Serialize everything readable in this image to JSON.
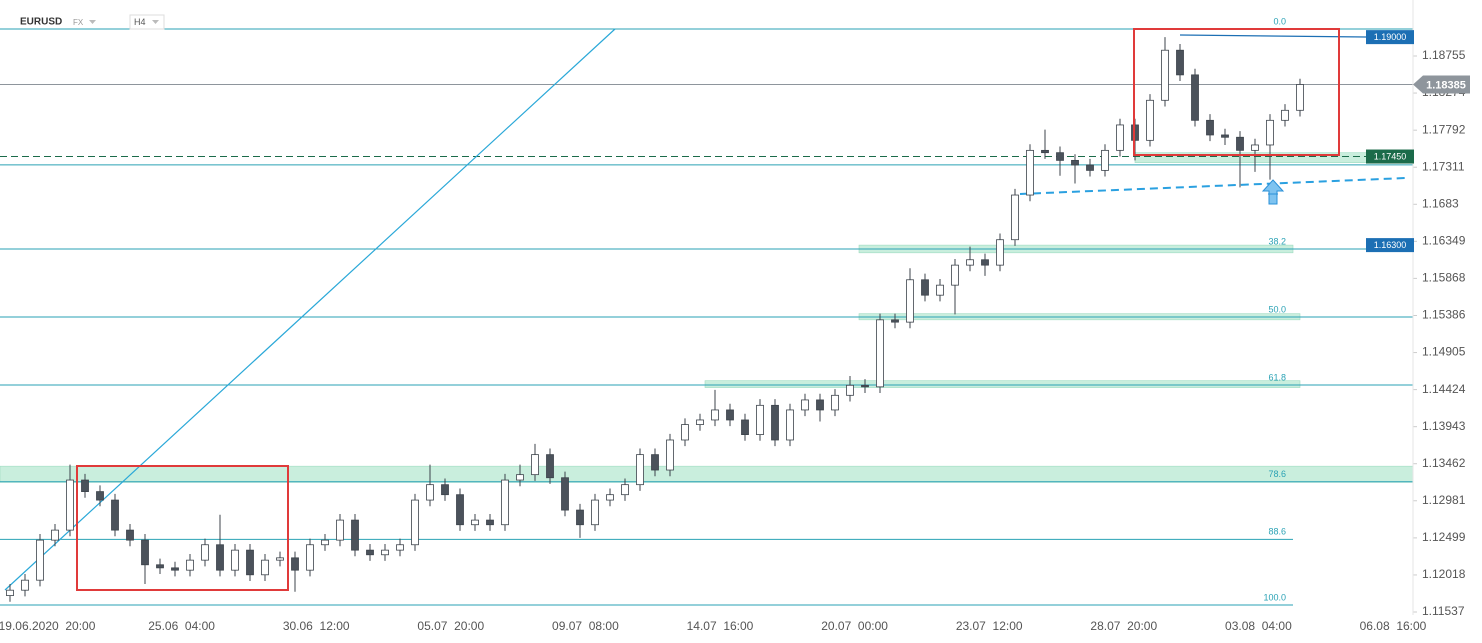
{
  "chart_data": {
    "type": "candlestick",
    "title": "EURUSD",
    "market": "FX",
    "timeframe": "H4",
    "x_labels": [
      "19.06.2020  20:00",
      "25.06  04:00",
      "30.06  12:00",
      "05.07  20:00",
      "09.07  08:00",
      "14.07  16:00",
      "20.07  00:00",
      "23.07  12:00",
      "28.07  20:00",
      "03.08  04:00",
      "06.08  16:00"
    ],
    "ylim": [
      1.11498,
      1.19482
    ],
    "yticks": [
      1.18755,
      1.18274,
      1.17792,
      1.17311,
      1.1683,
      1.16349,
      1.15868,
      1.15386,
      1.14905,
      1.14424,
      1.13943,
      1.13462,
      1.12981,
      1.12499,
      1.12018,
      1.11537
    ],
    "open": [
      1.1175,
      1.1182,
      1.1195,
      1.1247,
      1.126,
      1.1325,
      1.131,
      1.1299,
      1.126,
      1.1247,
      1.1215,
      1.1211,
      1.1208,
      1.1221,
      1.1241,
      1.1208,
      1.1234,
      1.1202,
      1.1221,
      1.1224,
      1.1208,
      1.1241,
      1.1247,
      1.1273,
      1.1234,
      1.1228,
      1.1234,
      1.1241,
      1.1299,
      1.1319,
      1.1306,
      1.1267,
      1.1273,
      1.1267,
      1.1325,
      1.1332,
      1.1358,
      1.1328,
      1.1286,
      1.1267,
      1.1299,
      1.1306,
      1.1319,
      1.1358,
      1.1338,
      1.1377,
      1.1397,
      1.1403,
      1.1416,
      1.1403,
      1.1384,
      1.1422,
      1.1377,
      1.1416,
      1.1429,
      1.1416,
      1.1435,
      1.1448,
      1.1446,
      1.1533,
      1.153,
      1.1585,
      1.1565,
      1.1578,
      1.1604,
      1.1611,
      1.1604,
      1.1637,
      1.1695,
      1.1753,
      1.175,
      1.174,
      1.1734,
      1.1727,
      1.1753,
      1.1786,
      1.1766,
      1.1818,
      1.1883,
      1.1851,
      1.1792,
      1.1773,
      1.177,
      1.1753,
      1.176,
      1.1792,
      1.1805
    ],
    "high": [
      1.119,
      1.1203,
      1.1255,
      1.1268,
      1.1345,
      1.1333,
      1.1318,
      1.1307,
      1.1268,
      1.1255,
      1.1223,
      1.1219,
      1.1229,
      1.1249,
      1.128,
      1.1242,
      1.1242,
      1.1229,
      1.1232,
      1.1232,
      1.1249,
      1.1255,
      1.1281,
      1.1281,
      1.1242,
      1.1242,
      1.1249,
      1.1307,
      1.1345,
      1.1327,
      1.1314,
      1.1281,
      1.1281,
      1.1333,
      1.1345,
      1.1372,
      1.1366,
      1.1336,
      1.1294,
      1.1307,
      1.1314,
      1.1327,
      1.1366,
      1.1366,
      1.1385,
      1.1405,
      1.1411,
      1.1442,
      1.1424,
      1.1411,
      1.143,
      1.143,
      1.1424,
      1.1437,
      1.1437,
      1.1443,
      1.146,
      1.1456,
      1.1541,
      1.1541,
      1.16,
      1.1593,
      1.1586,
      1.1612,
      1.1628,
      1.1619,
      1.1645,
      1.1703,
      1.1761,
      1.178,
      1.1758,
      1.1748,
      1.1742,
      1.1761,
      1.1794,
      1.1794,
      1.1826,
      1.19,
      1.1891,
      1.1859,
      1.18,
      1.1781,
      1.1778,
      1.1768,
      1.18,
      1.1813,
      1.1846
    ],
    "low": [
      1.1167,
      1.1174,
      1.1187,
      1.1239,
      1.1252,
      1.1302,
      1.1291,
      1.1252,
      1.1239,
      1.119,
      1.1203,
      1.12,
      1.12,
      1.1213,
      1.12,
      1.12,
      1.1194,
      1.1194,
      1.1213,
      1.118,
      1.12,
      1.1233,
      1.1239,
      1.1226,
      1.122,
      1.122,
      1.1226,
      1.1233,
      1.1291,
      1.1298,
      1.1259,
      1.1259,
      1.1259,
      1.1259,
      1.1317,
      1.1324,
      1.132,
      1.1278,
      1.125,
      1.1259,
      1.1291,
      1.1298,
      1.1311,
      1.133,
      1.133,
      1.1369,
      1.1389,
      1.1395,
      1.1395,
      1.1376,
      1.1376,
      1.1369,
      1.1369,
      1.1408,
      1.1401,
      1.1408,
      1.1427,
      1.1438,
      1.1438,
      1.1522,
      1.1522,
      1.1557,
      1.1557,
      1.154,
      1.1596,
      1.159,
      1.1596,
      1.1629,
      1.1687,
      1.1742,
      1.172,
      1.171,
      1.1719,
      1.1719,
      1.1745,
      1.174,
      1.1758,
      1.181,
      1.1843,
      1.1784,
      1.1765,
      1.176,
      1.1705,
      1.1725,
      1.1715,
      1.1784,
      1.1797
    ],
    "close": [
      1.1182,
      1.1195,
      1.1247,
      1.126,
      1.1325,
      1.131,
      1.1299,
      1.126,
      1.1247,
      1.1215,
      1.1211,
      1.1208,
      1.1221,
      1.1241,
      1.1208,
      1.1234,
      1.1202,
      1.1221,
      1.1224,
      1.1208,
      1.1241,
      1.1247,
      1.1273,
      1.1234,
      1.1228,
      1.1234,
      1.1241,
      1.1299,
      1.1319,
      1.1306,
      1.1267,
      1.1273,
      1.1267,
      1.1325,
      1.1332,
      1.1358,
      1.1328,
      1.1286,
      1.1267,
      1.1299,
      1.1306,
      1.1319,
      1.1358,
      1.1338,
      1.1377,
      1.1397,
      1.1403,
      1.1416,
      1.1403,
      1.1384,
      1.1422,
      1.1377,
      1.1416,
      1.1429,
      1.1416,
      1.1435,
      1.1448,
      1.1446,
      1.1533,
      1.153,
      1.1585,
      1.1565,
      1.1578,
      1.1604,
      1.1611,
      1.1604,
      1.1637,
      1.1695,
      1.1753,
      1.175,
      1.174,
      1.1734,
      1.1727,
      1.1753,
      1.1786,
      1.1766,
      1.1818,
      1.1883,
      1.1851,
      1.1792,
      1.1773,
      1.177,
      1.1753,
      1.176,
      1.1792,
      1.1805,
      1.18385
    ],
    "up_color": "#ffffff",
    "down_color": "#4b525b",
    "fib": {
      "high": 1.19106,
      "low": 1.11628,
      "color": "#2aa2b5",
      "levels": [
        0,
        23.6,
        38.2,
        50,
        61.8,
        78.6,
        88.6,
        100
      ],
      "labels": [
        "0.0",
        null,
        "38.2",
        "50.0",
        "61.8",
        "78.6",
        "88.6",
        "100.0"
      ]
    },
    "zones": [
      {
        "low": 1.1322,
        "high": 1.1343
      },
      {
        "low": 1.162,
        "high": 1.163
      },
      {
        "low": 1.1533,
        "high": 1.1541
      },
      {
        "low": 1.1445,
        "high": 1.1454
      },
      {
        "low": 1.1737,
        "high": 1.175
      }
    ],
    "zone_color": "#c9eedd",
    "price_lines": [
      {
        "value": {
          "value": 1.19,
          "label": "1.19000"
        },
        "color": "#1c6fb4",
        "line": "none"
      },
      {
        "value": 1.18385,
        "color": "#8e959c",
        "line": "solid"
      },
      {
        "value": {
          "value": 1.1745,
          "label": "1.17450"
        },
        "color": "#1b6b4a",
        "line": "dashed"
      },
      {
        "value": {
          "value": 1.163,
          "label": "1.16300"
        },
        "color": "#1c6fb4",
        "line": "none"
      }
    ]
  }
}
